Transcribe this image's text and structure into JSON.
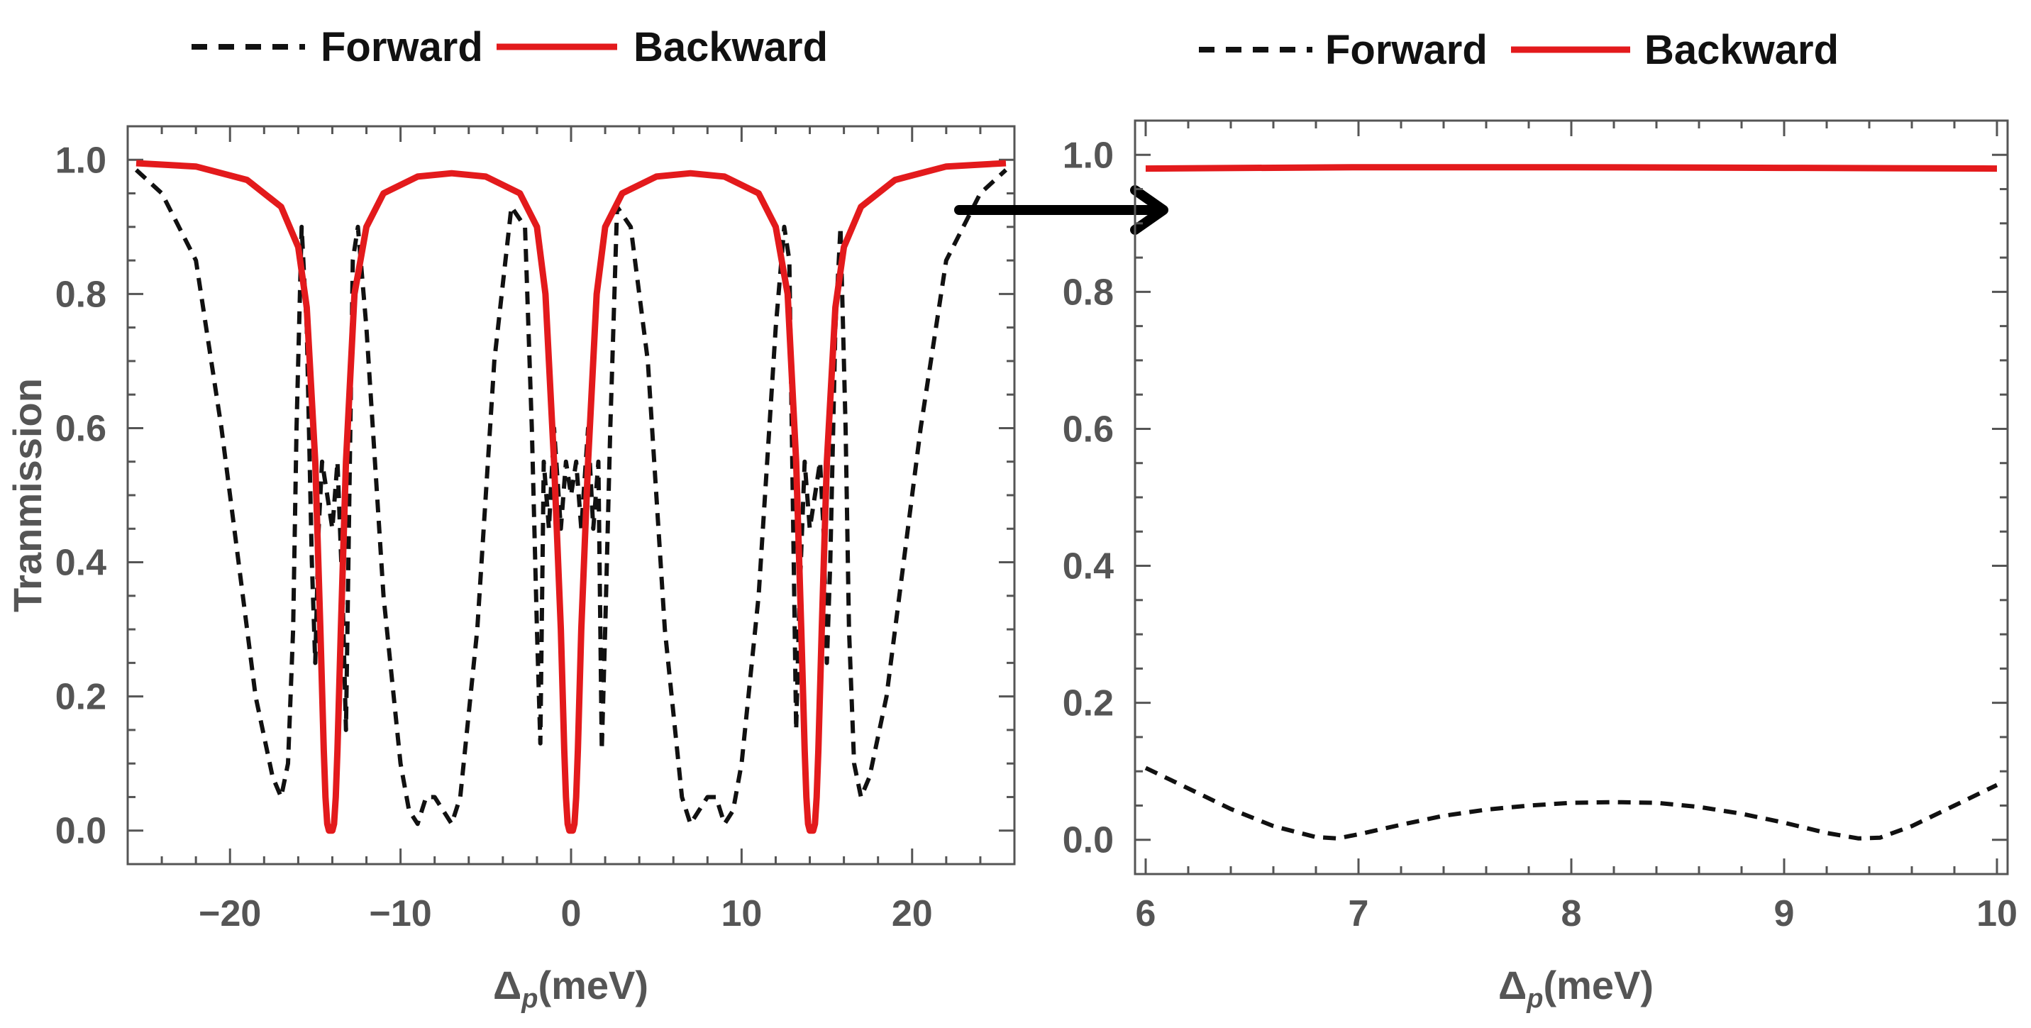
{
  "colors": {
    "forward": "#111111",
    "backward": "#e31a1c",
    "axis": "#555555",
    "arrow": "#000000"
  },
  "chart_data": [
    {
      "type": "line",
      "panel": "left",
      "title": "",
      "xlabel": "Δ",
      "xlabel_sub": "p",
      "xlabel_unit": "(meV)",
      "ylabel": "Tranmission",
      "xlim": [
        -26,
        26
      ],
      "ylim": [
        -0.05,
        1.05
      ],
      "xticks": [
        -20,
        -10,
        0,
        10,
        20
      ],
      "xtick_labels": [
        "−20",
        "−10",
        "0",
        "10",
        "20"
      ],
      "yticks": [
        0.0,
        0.2,
        0.4,
        0.6,
        0.8,
        1.0
      ],
      "ytick_labels": [
        "0.0",
        "0.2",
        "0.4",
        "0.6",
        "0.8",
        "1.0"
      ],
      "legend": {
        "placement": "top",
        "entries": [
          "Forward",
          "Backward"
        ]
      },
      "series": [
        {
          "name": "Forward",
          "style": "dashed",
          "x": [
            -25.5,
            -24,
            -22,
            -20.5,
            -19.5,
            -18.5,
            -17.5,
            -17,
            -16.6,
            -16.3,
            -16.1,
            -15.8,
            -15.5,
            -15.2,
            -15.0,
            -14.8,
            -14.6,
            -14.3,
            -14.0,
            -13.7,
            -13.4,
            -13.2,
            -13.0,
            -12.8,
            -12.5,
            -12,
            -11,
            -10,
            -9.5,
            -9.0,
            -8.5,
            -8.0,
            -7.5,
            -7.0,
            -6.5,
            -5.5,
            -4.5,
            -3.5,
            -2.7,
            -2.3,
            -2.0,
            -1.8,
            -1.6,
            -1.3,
            -1.0,
            -0.6,
            -0.3,
            0.0,
            0.3,
            0.6,
            1.0,
            1.3,
            1.6,
            1.8,
            2.0,
            2.3,
            2.7,
            3.5,
            4.5,
            5.5,
            6.5,
            7.0,
            7.5,
            8.0,
            8.5,
            9.0,
            9.5,
            10,
            11,
            12,
            12.5,
            12.8,
            13.0,
            13.2,
            13.4,
            13.7,
            14.0,
            14.3,
            14.6,
            14.8,
            15.0,
            15.2,
            15.5,
            15.8,
            16.1,
            16.3,
            16.6,
            17,
            17.5,
            18.5,
            19.5,
            20.5,
            22,
            24,
            25.5
          ],
          "y": [
            0.985,
            0.95,
            0.85,
            0.6,
            0.4,
            0.2,
            0.08,
            0.05,
            0.1,
            0.3,
            0.6,
            0.9,
            0.75,
            0.4,
            0.25,
            0.45,
            0.55,
            0.5,
            0.45,
            0.55,
            0.35,
            0.15,
            0.5,
            0.85,
            0.9,
            0.75,
            0.35,
            0.1,
            0.03,
            0.01,
            0.05,
            0.05,
            0.03,
            0.01,
            0.05,
            0.3,
            0.7,
            0.93,
            0.9,
            0.6,
            0.3,
            0.13,
            0.55,
            0.45,
            0.6,
            0.45,
            0.55,
            0.5,
            0.55,
            0.45,
            0.6,
            0.45,
            0.55,
            0.12,
            0.3,
            0.6,
            0.93,
            0.9,
            0.7,
            0.3,
            0.05,
            0.01,
            0.03,
            0.05,
            0.05,
            0.01,
            0.03,
            0.1,
            0.35,
            0.75,
            0.9,
            0.85,
            0.5,
            0.15,
            0.35,
            0.55,
            0.45,
            0.5,
            0.55,
            0.45,
            0.25,
            0.4,
            0.75,
            0.9,
            0.6,
            0.3,
            0.1,
            0.05,
            0.08,
            0.2,
            0.4,
            0.6,
            0.85,
            0.95,
            0.985
          ]
        },
        {
          "name": "Backward",
          "style": "solid",
          "resonances": [
            -14.1,
            0.0,
            14.1
          ],
          "baseline": 0.985,
          "x": [
            -25.5,
            -22,
            -19,
            -17,
            -16,
            -15.5,
            -15.0,
            -14.7,
            -14.5,
            -14.4,
            -14.3,
            -14.2,
            -14.1,
            -14.0,
            -13.9,
            -13.8,
            -13.7,
            -13.5,
            -13.2,
            -12.7,
            -12,
            -11,
            -9,
            -7,
            -5,
            -3,
            -2,
            -1.5,
            -1.0,
            -0.6,
            -0.4,
            -0.3,
            -0.2,
            -0.1,
            0.0,
            0.1,
            0.2,
            0.3,
            0.4,
            0.6,
            1.0,
            1.5,
            2,
            3,
            5,
            7,
            9,
            11,
            12,
            12.7,
            13.2,
            13.5,
            13.7,
            13.8,
            13.9,
            14.0,
            14.1,
            14.2,
            14.3,
            14.4,
            14.5,
            14.7,
            15.0,
            15.5,
            16,
            17,
            19,
            22,
            25.5
          ],
          "y": [
            0.995,
            0.99,
            0.97,
            0.93,
            0.87,
            0.78,
            0.55,
            0.3,
            0.12,
            0.05,
            0.01,
            0.0,
            0.0,
            0.0,
            0.01,
            0.05,
            0.12,
            0.3,
            0.55,
            0.8,
            0.9,
            0.95,
            0.975,
            0.98,
            0.975,
            0.95,
            0.9,
            0.8,
            0.55,
            0.3,
            0.12,
            0.05,
            0.01,
            0.0,
            0.0,
            0.0,
            0.01,
            0.05,
            0.12,
            0.3,
            0.55,
            0.8,
            0.9,
            0.95,
            0.975,
            0.98,
            0.975,
            0.95,
            0.9,
            0.8,
            0.55,
            0.3,
            0.12,
            0.05,
            0.01,
            0.0,
            0.0,
            0.0,
            0.01,
            0.05,
            0.12,
            0.3,
            0.55,
            0.78,
            0.87,
            0.93,
            0.97,
            0.99,
            0.995
          ]
        }
      ]
    },
    {
      "type": "line",
      "panel": "right",
      "title": "",
      "xlabel": "Δ",
      "xlabel_sub": "p",
      "xlabel_unit": "(meV)",
      "ylabel": "",
      "xlim": [
        5.95,
        10.05
      ],
      "ylim": [
        -0.05,
        1.05
      ],
      "xticks": [
        6,
        7,
        8,
        9,
        10
      ],
      "xtick_labels": [
        "6",
        "7",
        "8",
        "9",
        "10"
      ],
      "yticks": [
        0.0,
        0.2,
        0.4,
        0.6,
        0.8,
        1.0
      ],
      "ytick_labels": [
        "0.0",
        "0.2",
        "0.4",
        "0.6",
        "0.8",
        "1.0"
      ],
      "legend": {
        "placement": "top",
        "entries": [
          "Forward",
          "Backward"
        ]
      },
      "series": [
        {
          "name": "Forward",
          "style": "dashed",
          "x": [
            6.0,
            6.2,
            6.4,
            6.6,
            6.8,
            6.9,
            7.0,
            7.2,
            7.4,
            7.6,
            7.8,
            8.0,
            8.2,
            8.4,
            8.6,
            8.8,
            9.0,
            9.2,
            9.35,
            9.45,
            9.6,
            9.8,
            10.0
          ],
          "y": [
            0.105,
            0.075,
            0.045,
            0.02,
            0.004,
            0.002,
            0.008,
            0.022,
            0.035,
            0.044,
            0.05,
            0.054,
            0.055,
            0.054,
            0.048,
            0.038,
            0.025,
            0.01,
            0.002,
            0.003,
            0.02,
            0.05,
            0.08
          ]
        },
        {
          "name": "Backward",
          "style": "solid",
          "x": [
            6.0,
            7.0,
            8.0,
            9.0,
            10.0
          ],
          "y": [
            0.98,
            0.982,
            0.982,
            0.981,
            0.98
          ]
        }
      ]
    }
  ]
}
